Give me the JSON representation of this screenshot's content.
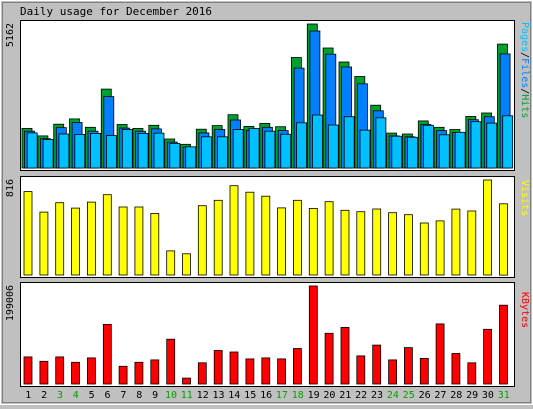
{
  "chart_data": {
    "type": "bar",
    "title": "Daily usage for December 2016",
    "days": [
      "1",
      "2",
      "3",
      "4",
      "5",
      "6",
      "7",
      "8",
      "9",
      "10",
      "11",
      "12",
      "13",
      "14",
      "15",
      "16",
      "17",
      "18",
      "19",
      "20",
      "21",
      "22",
      "23",
      "24",
      "25",
      "26",
      "27",
      "28",
      "29",
      "30",
      "31"
    ],
    "weekend_days": [
      "3",
      "4",
      "10",
      "11",
      "17",
      "18",
      "24",
      "25",
      "31"
    ],
    "top_panel": {
      "ylabel_parts": [
        "Pages",
        "/",
        "Files",
        "/",
        "Hits"
      ],
      "ymax": 5162,
      "series": [
        {
          "name": "Hits",
          "color": "#00a030",
          "values": [
            1420,
            1150,
            1570,
            1760,
            1460,
            2830,
            1560,
            1420,
            1530,
            1040,
            850,
            1390,
            1520,
            1910,
            1490,
            1600,
            1480,
            3960,
            5162,
            4300,
            3800,
            3280,
            2250,
            1250,
            1220,
            1690,
            1460,
            1380,
            1850,
            1970,
            4440
          ]
        },
        {
          "name": "Files",
          "color": "#0080ff",
          "values": [
            1320,
            1050,
            1450,
            1630,
            1320,
            2560,
            1430,
            1320,
            1400,
            930,
            750,
            1260,
            1380,
            1720,
            1350,
            1460,
            1340,
            3580,
            4910,
            4080,
            3620,
            3020,
            2050,
            1150,
            1120,
            1560,
            1340,
            1270,
            1730,
            1840,
            4090
          ]
        },
        {
          "name": "Pages",
          "color": "#00c0ff",
          "values": [
            1260,
            1020,
            1220,
            1200,
            1240,
            1160,
            1380,
            1240,
            1250,
            880,
            760,
            1120,
            1120,
            1380,
            1420,
            1320,
            1210,
            1620,
            1900,
            1540,
            1840,
            1360,
            1800,
            1140,
            1100,
            1530,
            1190,
            1280,
            1660,
            1610,
            1870
          ]
        }
      ]
    },
    "middle_panel": {
      "ylabel": "Visits",
      "ymax": 816,
      "series": [
        {
          "name": "Visits",
          "color": "#ffff00",
          "values": [
            716,
            540,
            621,
            575,
            626,
            690,
            584,
            584,
            529,
            207,
            182,
            595,
            642,
            767,
            711,
            677,
            576,
            642,
            572,
            630,
            556,
            544,
            567,
            535,
            518,
            447,
            465,
            566,
            550,
            816,
            612
          ]
        }
      ]
    },
    "bottom_panel": {
      "ylabel": "KBytes",
      "ymax": 199006,
      "series": [
        {
          "name": "KBytes",
          "color": "#ff0000",
          "values": [
            55000,
            46000,
            55000,
            44000,
            53000,
            121000,
            36000,
            44000,
            49000,
            91000,
            12000,
            43000,
            68000,
            65000,
            51000,
            53000,
            51000,
            72000,
            199006,
            103000,
            115000,
            57000,
            79000,
            49000,
            74000,
            52000,
            122000,
            62000,
            43000,
            111000,
            160000
          ]
        }
      ]
    }
  }
}
